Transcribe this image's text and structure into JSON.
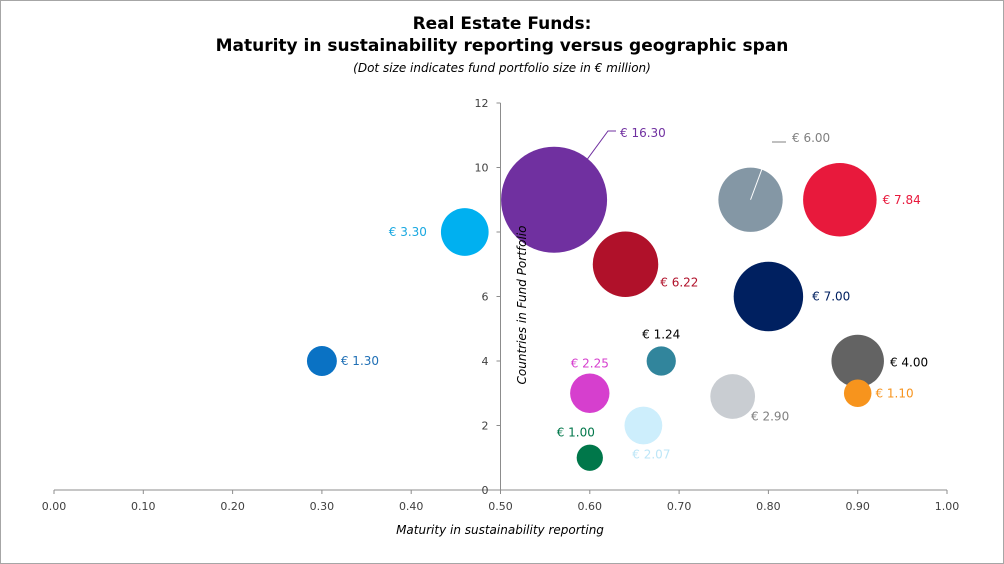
{
  "chart_data": {
    "type": "bubble",
    "title_line1": "Real Estate Funds:",
    "title_line2": "Maturity in sustainability reporting versus geographic span",
    "subtitle": "(Dot size indicates fund portfolio size in € million)",
    "xlabel": "Maturity in sustainability reporting",
    "ylabel": "Countries in Fund Portfolio",
    "xlim": [
      0,
      1
    ],
    "ylim": [
      0,
      12
    ],
    "x_ticks": [
      "0.00",
      "0.10",
      "0.20",
      "0.30",
      "0.40",
      "0.50",
      "0.60",
      "0.70",
      "0.80",
      "0.90",
      "1.00"
    ],
    "y_ticks": [
      "0",
      "2",
      "4",
      "6",
      "8",
      "10",
      "12"
    ],
    "points": [
      {
        "x": 0.3,
        "y": 4,
        "size": 1.3,
        "label": "€ 1.30",
        "color": "#0a72c4",
        "label_color": "#1f6fb5"
      },
      {
        "x": 0.46,
        "y": 8,
        "size": 3.3,
        "label": "€ 3.30",
        "color": "#00b0f0",
        "label_color": "#19a8e0"
      },
      {
        "x": 0.56,
        "y": 9,
        "size": 16.3,
        "label": "€ 16.30",
        "color": "#7030a0",
        "label_color": "#7030a0"
      },
      {
        "x": 0.64,
        "y": 7,
        "size": 6.22,
        "label": "€ 6.22",
        "color": "#b0112a",
        "label_color": "#b0112a"
      },
      {
        "x": 0.78,
        "y": 9,
        "size": 6.0,
        "label": "€ 6.00",
        "color": "#8497a5",
        "label_color": "#808080"
      },
      {
        "x": 0.88,
        "y": 9,
        "size": 7.84,
        "label": "€ 7.84",
        "color": "#e8193c",
        "label_color": "#e8193c"
      },
      {
        "x": 0.8,
        "y": 6,
        "size": 7.0,
        "label": "€ 7.00",
        "color": "#002060",
        "label_color": "#002060"
      },
      {
        "x": 0.68,
        "y": 4,
        "size": 1.24,
        "label": "€ 1.24",
        "color": "#31859c",
        "label_color": "#000000"
      },
      {
        "x": 0.9,
        "y": 4,
        "size": 4.0,
        "label": "€ 4.00",
        "color": "#636363",
        "label_color": "#000000"
      },
      {
        "x": 0.6,
        "y": 3,
        "size": 2.25,
        "label": "€ 2.25",
        "color": "#d63fce",
        "label_color": "#d63fce"
      },
      {
        "x": 0.9,
        "y": 3,
        "size": 1.1,
        "label": "€ 1.10",
        "color": "#f7941d",
        "label_color": "#f7941d"
      },
      {
        "x": 0.76,
        "y": 2.9,
        "size": 2.9,
        "label": "€ 2.90",
        "color": "#c9cdd2",
        "label_color": "#808080"
      },
      {
        "x": 0.66,
        "y": 2,
        "size": 2.07,
        "label": "€ 2.07",
        "color": "#cdeefc",
        "label_color": "#bde6f7"
      },
      {
        "x": 0.6,
        "y": 1,
        "size": 1.0,
        "label": "€ 1.00",
        "color": "#00774a",
        "label_color": "#00774a"
      }
    ]
  }
}
